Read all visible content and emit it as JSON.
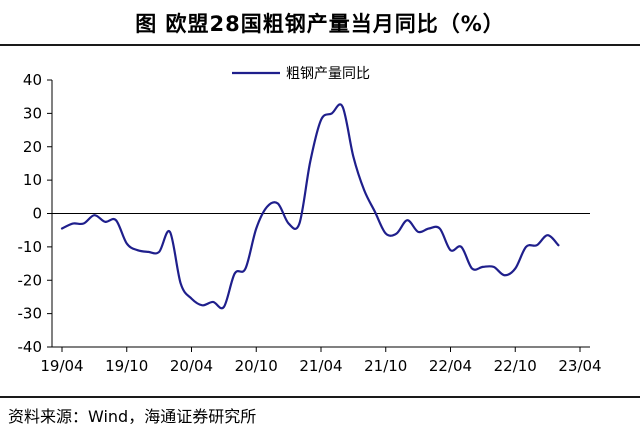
{
  "page": {
    "title": "图  欧盟28国粗钢产量当月同比（%）",
    "source": "资料来源：Wind，海通证券研究所"
  },
  "colors": {
    "series": "#1f1f8c",
    "axis": "#000000"
  },
  "chart_data": {
    "type": "line",
    "title": "图  欧盟28国粗钢产量当月同比（%）",
    "xlabel": "",
    "ylabel": "",
    "ylim": [
      -40,
      40
    ],
    "yticks": [
      40,
      30,
      20,
      10,
      0,
      -10,
      -20,
      -30,
      -40
    ],
    "xticks": [
      "19/04",
      "19/10",
      "20/04",
      "20/10",
      "21/04",
      "21/10",
      "22/04",
      "22/10",
      "23/04"
    ],
    "legend_position": "top-center",
    "grid": false,
    "x": [
      "19/04",
      "19/05",
      "19/06",
      "19/07",
      "19/08",
      "19/09",
      "19/10",
      "19/11",
      "19/12",
      "20/01",
      "20/02",
      "20/03",
      "20/04",
      "20/05",
      "20/06",
      "20/07",
      "20/08",
      "20/09",
      "20/10",
      "20/11",
      "20/12",
      "21/01",
      "21/02",
      "21/03",
      "21/04",
      "21/05",
      "21/06",
      "21/07",
      "21/08",
      "21/09",
      "21/10",
      "21/11",
      "21/12",
      "22/01",
      "22/02",
      "22/03",
      "22/04",
      "22/05",
      "22/06",
      "22/07",
      "22/08",
      "22/09",
      "22/10",
      "22/11",
      "22/12",
      "23/01",
      "23/02",
      "23/03",
      "23/04"
    ],
    "series": [
      {
        "name": "粗钢产量同比",
        "values": [
          -4.5,
          -3,
          -3,
          -0.5,
          -2.5,
          -2,
          -9,
          -11,
          -11.5,
          -11.5,
          -5.5,
          -21,
          -25.5,
          -27.5,
          -26.5,
          -28,
          -18,
          -16.5,
          -4.5,
          2,
          3,
          -3,
          -3,
          15.5,
          28,
          30,
          32,
          17,
          7,
          0.5,
          -6,
          -6,
          -2,
          -5.5,
          -4.5,
          -4.5,
          -11,
          -10,
          -16.5,
          -16,
          -16,
          -18.5,
          -16.5,
          -10,
          -9.5,
          -6.5,
          -9.5,
          null,
          null
        ]
      }
    ]
  }
}
